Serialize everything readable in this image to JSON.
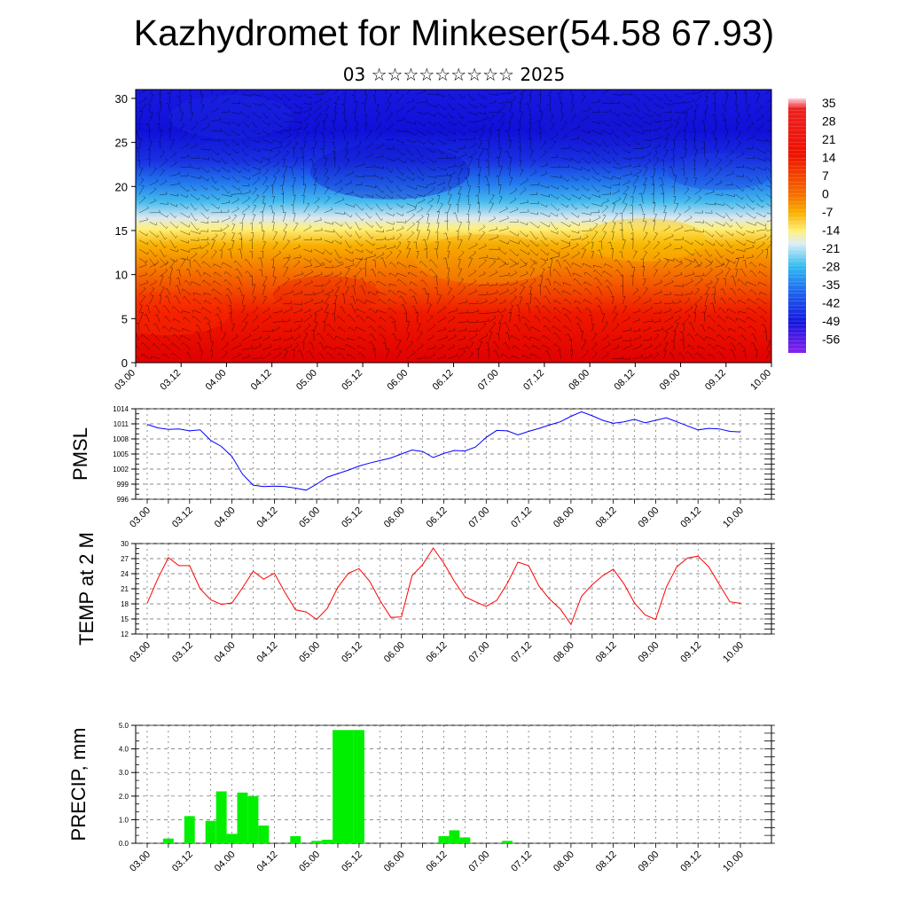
{
  "header": {
    "title": "Kazhydromet for Minkeser(54.58 67.93)",
    "date_line": "03 ☆☆☆☆☆☆☆☆☆ 2025"
  },
  "chart_data": [
    {
      "type": "heatmap",
      "name": "vertical-cross-section",
      "title": "",
      "x_ticks": [
        "03.00",
        "03.12",
        "04.00",
        "04.12",
        "05.00",
        "05.12",
        "06.00",
        "06.12",
        "07.00",
        "07.12",
        "08.00",
        "08.12",
        "09.00",
        "09.12",
        "10.00"
      ],
      "y_ticks": [
        0,
        5,
        10,
        15,
        20,
        25,
        30
      ],
      "ylim": [
        0,
        31
      ],
      "colorbar_labels": [
        35,
        28,
        21,
        14,
        7,
        0,
        -7,
        -14,
        -21,
        -28,
        -35,
        -42,
        -49,
        -56
      ],
      "colors": {
        "hot": "#ee1100",
        "warm": "#f5a300",
        "mild": "#fff07a",
        "cool": "#22aaee",
        "cold": "#1515dd"
      },
      "overlay": "wind vector streamlines"
    },
    {
      "type": "line",
      "name": "pmsl",
      "ylabel": "PMSL",
      "color": "#0000ff",
      "ylim": [
        996,
        1014
      ],
      "y_ticks": [
        996,
        999,
        1002,
        1005,
        1008,
        1011,
        1014
      ],
      "x_ticks": [
        "03.00",
        "03.12",
        "04.00",
        "04.12",
        "05.00",
        "05.12",
        "06.00",
        "06.12",
        "07.00",
        "07.12",
        "08.00",
        "08.12",
        "09.00",
        "09.12",
        "10.00"
      ],
      "x": [
        0,
        3,
        6,
        9,
        12,
        15,
        18,
        21,
        24,
        27,
        30,
        33,
        36,
        39,
        42,
        45,
        48,
        51,
        54,
        57,
        60,
        63,
        66,
        69,
        72,
        75,
        78,
        81,
        84,
        87,
        90,
        93,
        96,
        99,
        102,
        105,
        108,
        111,
        114,
        117,
        120,
        123,
        126,
        129,
        132,
        135,
        138,
        141,
        144,
        147,
        150,
        153,
        156,
        159,
        162,
        165,
        168
      ],
      "values": [
        1010.9,
        1010.2,
        1009.9,
        1010.0,
        1009.6,
        1009.8,
        1007.7,
        1006.5,
        1004.5,
        1001.0,
        998.8,
        998.5,
        998.6,
        998.5,
        998.2,
        997.8,
        999.0,
        1000.4,
        1001.1,
        1001.8,
        1002.6,
        1003.2,
        1003.7,
        1004.2,
        1005.0,
        1005.8,
        1005.5,
        1004.3,
        1005.1,
        1005.7,
        1005.6,
        1006.4,
        1008.3,
        1009.7,
        1009.6,
        1008.8,
        1009.5,
        1010.1,
        1010.8,
        1011.4,
        1012.5,
        1013.4,
        1012.6,
        1011.7,
        1011.1,
        1011.4,
        1011.9,
        1011.2,
        1011.7,
        1012.2,
        1011.4,
        1010.6,
        1009.8,
        1010.1,
        1010.0,
        1009.5,
        1009.4
      ]
    },
    {
      "type": "line",
      "name": "temp-2m",
      "ylabel": "TEMP at 2 M",
      "color": "#ff0000",
      "ylim": [
        12,
        30
      ],
      "y_ticks": [
        12,
        15,
        18,
        21,
        24,
        27,
        30
      ],
      "x_ticks": [
        "03.00",
        "03.12",
        "04.00",
        "04.12",
        "05.00",
        "05.12",
        "06.00",
        "06.12",
        "07.00",
        "07.12",
        "08.00",
        "08.12",
        "09.00",
        "09.12",
        "10.00"
      ],
      "x": [
        0,
        3,
        6,
        9,
        12,
        15,
        18,
        21,
        24,
        27,
        30,
        33,
        36,
        39,
        42,
        45,
        48,
        51,
        54,
        57,
        60,
        63,
        66,
        69,
        72,
        75,
        78,
        81,
        84,
        87,
        90,
        93,
        96,
        99,
        102,
        105,
        108,
        111,
        114,
        117,
        120,
        123,
        126,
        129,
        132,
        135,
        138,
        141,
        144,
        147,
        150,
        153,
        156,
        159,
        162,
        165,
        168
      ],
      "values": [
        18.1,
        23.0,
        27.2,
        25.6,
        25.6,
        21.0,
        18.8,
        17.9,
        18.2,
        21.2,
        24.5,
        22.9,
        24.1,
        20.3,
        16.8,
        16.4,
        14.9,
        17.1,
        21.3,
        24.1,
        25.0,
        22.5,
        18.6,
        15.3,
        15.4,
        23.6,
        25.8,
        29.1,
        26.1,
        22.5,
        19.4,
        18.4,
        17.5,
        18.7,
        22.1,
        26.3,
        25.6,
        21.5,
        18.9,
        17.0,
        13.9,
        19.5,
        21.8,
        23.6,
        24.9,
        22.0,
        18.2,
        15.8,
        14.9,
        21.3,
        25.4,
        27.1,
        27.5,
        25.4,
        21.9,
        18.4,
        18.1
      ]
    },
    {
      "type": "bar",
      "name": "precip",
      "ylabel": "PRECIP, mm",
      "color": "#00ee00",
      "ylim": [
        0,
        5.0
      ],
      "y_ticks": [
        "0.0",
        "1.0",
        "2.0",
        "3.0",
        "4.0",
        "5.0"
      ],
      "x_ticks": [
        "03.00",
        "03.12",
        "04.00",
        "04.12",
        "05.00",
        "05.12",
        "06.00",
        "06.12",
        "07.00",
        "07.12",
        "08.00",
        "08.12",
        "09.00",
        "09.12",
        "10.00"
      ],
      "x": [
        6,
        12,
        18,
        21,
        24,
        27,
        30,
        33,
        36,
        42,
        48,
        51,
        54,
        57,
        60,
        84,
        87,
        90,
        102
      ],
      "values": [
        0.2,
        1.15,
        0.95,
        2.2,
        0.4,
        2.15,
        2.0,
        0.75,
        0.0,
        0.3,
        0.1,
        0.15,
        4.8,
        4.8,
        4.8,
        0.3,
        0.55,
        0.25,
        0.1
      ]
    }
  ]
}
